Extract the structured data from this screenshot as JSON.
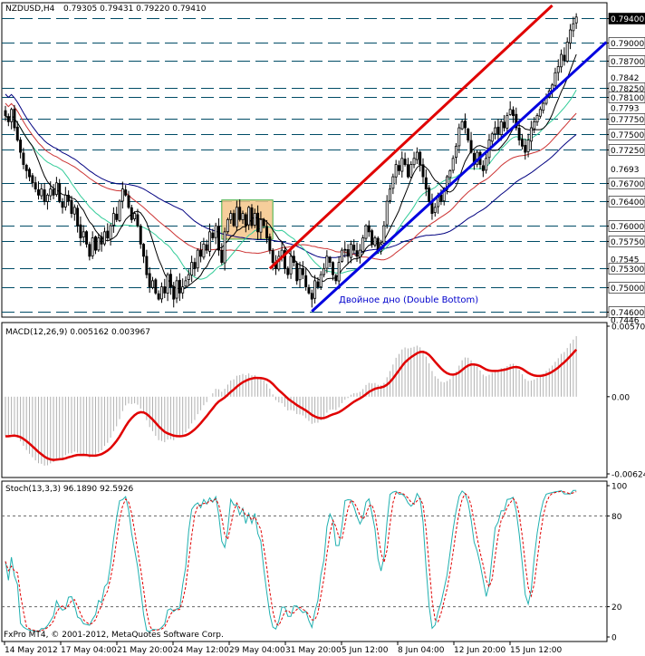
{
  "header": {
    "symbol": "NZDUSD,H4",
    "ohlc": "0.79305 0.79431 0.79220 0.79410"
  },
  "footer": {
    "copyright": "FxPro MT4, © 2001-2012, MetaQuotes Software Corp."
  },
  "colors": {
    "up_candle": "#ffffff",
    "down_candle": "#000000",
    "channel_upper": "#e00000",
    "channel_lower": "#0000e0",
    "ma_fast": "#000000",
    "ma_mid": "#33cc99",
    "ma_slow": "#cc3333",
    "ma_slowest": "#000080",
    "macd_signal": "#e00000",
    "macd_hist": "#b0b0b0",
    "stoch_main": "#20b0b0",
    "stoch_signal": "#e00000",
    "pattern_box": "#f5c68a",
    "current_price_tag": "#000000"
  },
  "chart_data": [
    {
      "type": "candlestick",
      "panel": "price",
      "title": "NZDUSD,H4",
      "ylim": [
        0.7455,
        0.796
      ],
      "price_levels": [
        "0.79400",
        "0.79000",
        "0.78700",
        "0.78250",
        "0.78100",
        "0.77750",
        "0.77500",
        "0.77250",
        "0.76700",
        "0.76400",
        "0.76000",
        "0.75750",
        "0.75300",
        "0.75000",
        "0.74600"
      ],
      "price_ticks": [
        "0.7842",
        "0.7793",
        "0.7693",
        "0.7545",
        "0.7446"
      ],
      "current_price": "0.79400",
      "x_labels": [
        "14 May 2012",
        "17 May 04:00",
        "21 May 20:00",
        "24 May 12:00",
        "29 May 04:00",
        "31 May 20:00",
        "5 Jun 12:00",
        "8 Jun 04:00",
        "12 Jun 20:00",
        "15 Jun 12:00"
      ],
      "annotation": "Двойное дно (Double Bottom)",
      "series": [
        {
          "name": "upper channel",
          "type": "trendline",
          "from": {
            "bar": 88,
            "price": 0.753
          },
          "to": {
            "bar": 182,
            "price": 0.796
          }
        },
        {
          "name": "lower channel",
          "type": "trendline",
          "from": {
            "bar": 102,
            "price": 0.746
          },
          "to": {
            "bar": 200,
            "price": 0.79
          }
        }
      ],
      "candles_close": [
        0.778,
        0.777,
        0.779,
        0.776,
        0.774,
        0.772,
        0.77,
        0.769,
        0.768,
        0.767,
        0.766,
        0.765,
        0.766,
        0.764,
        0.765,
        0.766,
        0.765,
        0.767,
        0.764,
        0.763,
        0.765,
        0.764,
        0.762,
        0.763,
        0.76,
        0.758,
        0.759,
        0.757,
        0.755,
        0.758,
        0.756,
        0.758,
        0.757,
        0.759,
        0.758,
        0.76,
        0.762,
        0.761,
        0.764,
        0.766,
        0.765,
        0.763,
        0.761,
        0.762,
        0.76,
        0.757,
        0.755,
        0.752,
        0.75,
        0.751,
        0.749,
        0.748,
        0.75,
        0.749,
        0.752,
        0.75,
        0.748,
        0.751,
        0.749,
        0.75,
        0.751,
        0.752,
        0.754,
        0.753,
        0.756,
        0.755,
        0.757,
        0.756,
        0.759,
        0.758,
        0.76,
        0.756,
        0.754,
        0.759,
        0.761,
        0.762,
        0.76,
        0.763,
        0.761,
        0.762,
        0.76,
        0.763,
        0.76,
        0.762,
        0.759,
        0.761,
        0.76,
        0.758,
        0.756,
        0.754,
        0.753,
        0.755,
        0.756,
        0.753,
        0.752,
        0.755,
        0.754,
        0.751,
        0.753,
        0.752,
        0.75,
        0.749,
        0.748,
        0.751,
        0.75,
        0.752,
        0.753,
        0.755,
        0.754,
        0.752,
        0.751,
        0.754,
        0.756,
        0.756,
        0.755,
        0.757,
        0.756,
        0.755,
        0.756,
        0.758,
        0.76,
        0.759,
        0.757,
        0.758,
        0.756,
        0.757,
        0.76,
        0.764,
        0.766,
        0.768,
        0.77,
        0.769,
        0.771,
        0.77,
        0.768,
        0.77,
        0.771,
        0.772,
        0.77,
        0.768,
        0.766,
        0.764,
        0.762,
        0.763,
        0.765,
        0.764,
        0.766,
        0.768,
        0.769,
        0.771,
        0.773,
        0.776,
        0.777,
        0.776,
        0.774,
        0.772,
        0.77,
        0.772,
        0.77,
        0.769,
        0.771,
        0.774,
        0.775,
        0.776,
        0.775,
        0.777,
        0.776,
        0.778,
        0.779,
        0.778,
        0.776,
        0.774,
        0.773,
        0.772,
        0.774,
        0.776,
        0.777,
        0.778,
        0.779,
        0.78,
        0.781,
        0.782,
        0.783,
        0.785,
        0.786,
        0.788,
        0.787,
        0.79,
        0.792,
        0.793,
        0.7941
      ]
    },
    {
      "type": "bar",
      "panel": "macd",
      "title": "MACD(12,26,9) 0.005162 0.003967",
      "y_ticks": [
        "0.00570",
        "0.00",
        "-0.00624"
      ],
      "ylim": [
        -0.00624,
        0.0057
      ]
    },
    {
      "type": "line",
      "panel": "stoch",
      "title": "Stoch(13,3,3) 96.1890 92.5926",
      "y_ticks": [
        "100",
        "80",
        "20",
        "0"
      ],
      "ylim": [
        0,
        100
      ]
    }
  ]
}
